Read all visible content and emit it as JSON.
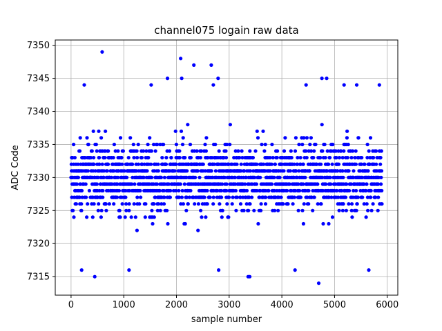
{
  "chart_data": {
    "type": "scatter",
    "title": "channel075 logain raw data",
    "xlabel": "sample number",
    "ylabel": "ADC Code",
    "xlim": [
      -300,
      6200
    ],
    "ylim": [
      7312.2,
      7350.8
    ],
    "xticks": [
      0,
      1000,
      2000,
      3000,
      4000,
      5000,
      6000
    ],
    "yticks": [
      7315,
      7320,
      7325,
      7330,
      7335,
      7340,
      7345,
      7350
    ],
    "grid": true,
    "marker_color": "#0000ff",
    "series": [
      {
        "n_points": 5900,
        "core_range": [
          7321,
          7339
        ],
        "sparse_range": [
          7314,
          7349
        ],
        "outliers": [
          {
            "x": 590,
            "y": 7349
          },
          {
            "x": 2080,
            "y": 7348
          },
          {
            "x": 2330,
            "y": 7347
          },
          {
            "x": 2660,
            "y": 7347
          },
          {
            "x": 1830,
            "y": 7345
          },
          {
            "x": 2100,
            "y": 7345
          },
          {
            "x": 2790,
            "y": 7345
          },
          {
            "x": 4760,
            "y": 7345
          },
          {
            "x": 4850,
            "y": 7345
          },
          {
            "x": 250,
            "y": 7344
          },
          {
            "x": 1520,
            "y": 7344
          },
          {
            "x": 2700,
            "y": 7344
          },
          {
            "x": 4460,
            "y": 7344
          },
          {
            "x": 5180,
            "y": 7344
          },
          {
            "x": 5420,
            "y": 7344
          },
          {
            "x": 5850,
            "y": 7344
          },
          {
            "x": 200,
            "y": 7316
          },
          {
            "x": 1100,
            "y": 7316
          },
          {
            "x": 2800,
            "y": 7316
          },
          {
            "x": 4250,
            "y": 7316
          },
          {
            "x": 5650,
            "y": 7316
          },
          {
            "x": 450,
            "y": 7315
          },
          {
            "x": 3360,
            "y": 7315
          },
          {
            "x": 3390,
            "y": 7315
          },
          {
            "x": 4700,
            "y": 7314
          }
        ]
      }
    ]
  }
}
